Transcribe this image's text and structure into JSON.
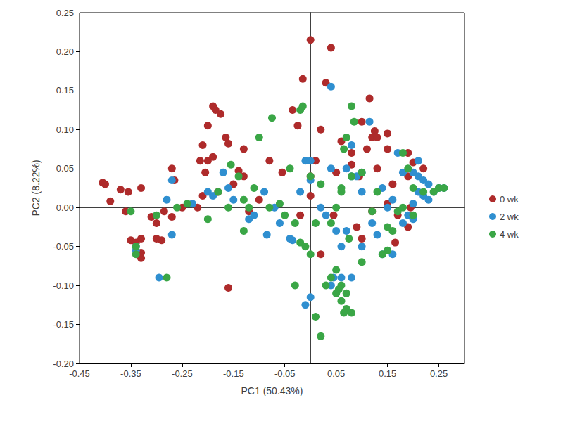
{
  "chart_data": {
    "type": "scatter",
    "x_label": "PC1 (50.43%)",
    "y_label": "PC2 (8.22%)",
    "xlim": [
      -0.45,
      0.3
    ],
    "xticks": [
      -0.45,
      -0.35,
      -0.25,
      -0.15,
      -0.05,
      0.05,
      0.15,
      0.25
    ],
    "ylim": [
      -0.2,
      0.25
    ],
    "yticks": [
      {
        "value": -0.2,
        "label": "-0.20"
      },
      -0.15,
      {
        "value": -0.1,
        "label": "-0.10"
      },
      -0.05,
      {
        "value": 0,
        "label": "0.00"
      },
      0.05,
      {
        "value": 0.1,
        "label": "0.10"
      },
      0.15,
      {
        "value": 0.2,
        "label": "0.20"
      },
      0.25
    ],
    "grid": false,
    "legend": "right",
    "marker": "circle",
    "series": [
      {
        "name": "0 wk",
        "color": "#ae2b2b",
        "values": [
          [
            -0.405,
            0.032
          ],
          [
            -0.4,
            0.03
          ],
          [
            -0.37,
            0.023
          ],
          [
            -0.355,
            0.02
          ],
          [
            -0.33,
            0.025
          ],
          [
            -0.39,
            0.008
          ],
          [
            -0.36,
            -0.005
          ],
          [
            -0.35,
            -0.042
          ],
          [
            -0.34,
            -0.045
          ],
          [
            -0.33,
            -0.04
          ],
          [
            -0.33,
            -0.065
          ],
          [
            -0.33,
            -0.058
          ],
          [
            -0.3,
            -0.04
          ],
          [
            -0.29,
            -0.042
          ],
          [
            -0.31,
            -0.012
          ],
          [
            -0.3,
            -0.02
          ],
          [
            -0.285,
            -0.005
          ],
          [
            -0.27,
            -0.012
          ],
          [
            -0.265,
            0.035
          ],
          [
            -0.27,
            0.05
          ],
          [
            -0.25,
            0.0
          ],
          [
            -0.22,
            0.0
          ],
          [
            -0.21,
            0.015
          ],
          [
            -0.205,
            0.045
          ],
          [
            -0.2,
            0.06
          ],
          [
            -0.21,
            0.08
          ],
          [
            -0.2,
            0.105
          ],
          [
            -0.19,
            0.13
          ],
          [
            -0.185,
            0.125
          ],
          [
            -0.175,
            0.12
          ],
          [
            -0.215,
            0.06
          ],
          [
            -0.19,
            0.065
          ],
          [
            -0.165,
            0.09
          ],
          [
            -0.16,
            0.082
          ],
          [
            -0.13,
            0.075
          ],
          [
            -0.14,
            0.047
          ],
          [
            -0.13,
            0.04
          ],
          [
            -0.15,
            0.03
          ],
          [
            -0.18,
            0.02
          ],
          [
            -0.16,
            -0.103
          ],
          [
            -0.1,
            0.01
          ],
          [
            -0.08,
            0.06
          ],
          [
            -0.055,
            0.045
          ],
          [
            -0.025,
            0.105
          ],
          [
            -0.015,
            0.165
          ],
          [
            -0.035,
            0.125
          ],
          [
            0.0,
            0.215
          ],
          [
            0.04,
            0.205
          ],
          [
            0.03,
            0.16
          ],
          [
            0.02,
            0.1
          ],
          [
            0.01,
            0.06
          ],
          [
            0.0,
            0.04
          ],
          [
            0.05,
            0.045
          ],
          [
            0.06,
            0.085
          ],
          [
            0.08,
            0.07
          ],
          [
            0.1,
            0.11
          ],
          [
            0.115,
            0.14
          ],
          [
            0.12,
            0.09
          ],
          [
            0.125,
            0.098
          ],
          [
            0.13,
            0.09
          ],
          [
            0.15,
            0.095
          ],
          [
            0.15,
            0.075
          ],
          [
            0.11,
            0.075
          ],
          [
            0.13,
            0.05
          ],
          [
            0.095,
            0.04
          ],
          [
            0.08,
            0.055
          ],
          [
            0.19,
            0.07
          ],
          [
            0.2,
            0.058
          ],
          [
            0.22,
            0.05
          ],
          [
            0.19,
            0.04
          ],
          [
            0.16,
            0.03
          ],
          [
            0.15,
            0.005
          ],
          [
            0.17,
            -0.01
          ],
          [
            0.19,
            -0.025
          ],
          [
            0.12,
            -0.005
          ],
          [
            0.09,
            -0.025
          ],
          [
            0.02,
            -0.06
          ],
          [
            0.045,
            -0.01
          ],
          [
            0.1,
            -0.04
          ],
          [
            0.165,
            -0.045
          ],
          [
            0.195,
            0.0
          ],
          [
            -0.02,
            -0.01
          ],
          [
            0.0,
            0.015
          ],
          [
            -0.12,
            -0.005
          ]
        ]
      },
      {
        "name": "2 wk",
        "color": "#2f8fd0",
        "values": [
          [
            -0.34,
            -0.05
          ],
          [
            -0.34,
            -0.055
          ],
          [
            -0.295,
            -0.09
          ],
          [
            -0.27,
            -0.035
          ],
          [
            -0.28,
            0.01
          ],
          [
            -0.27,
            0.035
          ],
          [
            -0.23,
            0.005
          ],
          [
            -0.2,
            0.02
          ],
          [
            -0.19,
            0.015
          ],
          [
            -0.17,
            0.045
          ],
          [
            -0.16,
            0.025
          ],
          [
            -0.15,
            0.01
          ],
          [
            -0.12,
            -0.015
          ],
          [
            -0.11,
            -0.01
          ],
          [
            -0.09,
            0.02
          ],
          [
            -0.07,
            0.0
          ],
          [
            -0.085,
            -0.035
          ],
          [
            -0.06,
            -0.02
          ],
          [
            -0.04,
            -0.04
          ],
          [
            -0.035,
            -0.042
          ],
          [
            -0.02,
            0.02
          ],
          [
            -0.01,
            0.06
          ],
          [
            0.0,
            0.035
          ],
          [
            -0.01,
            -0.125
          ],
          [
            0.0,
            -0.115
          ],
          [
            0.04,
            0.155
          ],
          [
            0.02,
            0.0
          ],
          [
            0.03,
            -0.01
          ],
          [
            0.05,
            -0.03
          ],
          [
            0.06,
            -0.05
          ],
          [
            0.07,
            -0.03
          ],
          [
            0.08,
            0.04
          ],
          [
            0.09,
            0.04
          ],
          [
            0.1,
            0.045
          ],
          [
            0.08,
            0.08
          ],
          [
            0.1,
            0.02
          ],
          [
            0.12,
            -0.02
          ],
          [
            0.13,
            -0.035
          ],
          [
            0.14,
            -0.06
          ],
          [
            0.1,
            -0.05
          ],
          [
            0.08,
            -0.09
          ],
          [
            0.045,
            -0.09
          ],
          [
            0.04,
            -0.1
          ],
          [
            0.06,
            -0.09
          ],
          [
            0.14,
            0.025
          ],
          [
            0.16,
            0.01
          ],
          [
            0.17,
            0.07
          ],
          [
            0.18,
            0.045
          ],
          [
            0.2,
            0.045
          ],
          [
            0.21,
            0.04
          ],
          [
            0.22,
            0.035
          ],
          [
            0.23,
            0.03
          ],
          [
            0.21,
            0.02
          ],
          [
            0.22,
            0.015
          ],
          [
            0.24,
            0.02
          ],
          [
            0.25,
            0.025
          ],
          [
            0.26,
            0.025
          ],
          [
            0.2,
            0.005
          ],
          [
            0.19,
            -0.01
          ],
          [
            0.2,
            -0.015
          ],
          [
            0.18,
            -0.02
          ],
          [
            0.23,
            0.01
          ],
          [
            0.15,
            0.0
          ],
          [
            0.16,
            -0.06
          ],
          [
            0.115,
            0.11
          ],
          [
            0.07,
            0.05
          ],
          [
            0.04,
            0.05
          ],
          [
            0.0,
            0.06
          ],
          [
            0.21,
            0.06
          ]
        ]
      },
      {
        "name": "4 wk",
        "color": "#3aa646",
        "values": [
          [
            -0.35,
            -0.005
          ],
          [
            -0.34,
            -0.05
          ],
          [
            -0.34,
            -0.06
          ],
          [
            -0.3,
            -0.01
          ],
          [
            -0.28,
            -0.09
          ],
          [
            -0.26,
            0.0
          ],
          [
            -0.24,
            0.005
          ],
          [
            -0.2,
            -0.015
          ],
          [
            -0.18,
            0.02
          ],
          [
            -0.16,
            0.0
          ],
          [
            -0.155,
            0.055
          ],
          [
            -0.14,
            0.04
          ],
          [
            -0.13,
            -0.03
          ],
          [
            -0.12,
            0.0
          ],
          [
            -0.11,
            0.025
          ],
          [
            -0.1,
            0.09
          ],
          [
            -0.08,
            0.0
          ],
          [
            -0.075,
            0.115
          ],
          [
            -0.06,
            0.005
          ],
          [
            -0.05,
            -0.01
          ],
          [
            -0.03,
            -0.02
          ],
          [
            -0.02,
            0.125
          ],
          [
            -0.015,
            0.13
          ],
          [
            -0.03,
            -0.1
          ],
          [
            -0.02,
            -0.045
          ],
          [
            -0.01,
            -0.05
          ],
          [
            0.0,
            -0.06
          ],
          [
            0.01,
            -0.02
          ],
          [
            0.0,
            0.04
          ],
          [
            0.01,
            -0.14
          ],
          [
            0.02,
            -0.165
          ],
          [
            0.03,
            -0.1
          ],
          [
            0.04,
            -0.09
          ],
          [
            0.05,
            -0.08
          ],
          [
            0.06,
            -0.1
          ],
          [
            0.05,
            -0.11
          ],
          [
            0.06,
            -0.12
          ],
          [
            0.07,
            -0.11
          ],
          [
            0.07,
            -0.13
          ],
          [
            0.08,
            -0.135
          ],
          [
            0.065,
            -0.135
          ],
          [
            0.055,
            -0.105
          ],
          [
            0.04,
            -0.02
          ],
          [
            0.05,
            0.0
          ],
          [
            0.06,
            0.02
          ],
          [
            0.065,
            0.075
          ],
          [
            0.07,
            0.09
          ],
          [
            0.08,
            0.13
          ],
          [
            0.085,
            0.11
          ],
          [
            0.06,
            0.025
          ],
          [
            0.08,
            0.04
          ],
          [
            0.1,
            0.045
          ],
          [
            0.12,
            -0.005
          ],
          [
            0.13,
            0.02
          ],
          [
            0.15,
            -0.025
          ],
          [
            0.15,
            -0.055
          ],
          [
            0.16,
            -0.03
          ],
          [
            0.18,
            0.0
          ],
          [
            0.18,
            0.07
          ],
          [
            0.19,
            0.05
          ],
          [
            0.2,
            0.025
          ],
          [
            0.22,
            0.02
          ],
          [
            0.24,
            0.02
          ],
          [
            0.25,
            0.025
          ],
          [
            0.26,
            0.025
          ],
          [
            0.2,
            -0.01
          ],
          [
            0.17,
            -0.005
          ],
          [
            0.14,
            -0.06
          ],
          [
            0.075,
            -0.04
          ],
          [
            0.1,
            -0.07
          ],
          [
            0.02,
            0.03
          ],
          [
            -0.04,
            0.05
          ],
          [
            -0.13,
            0.01
          ]
        ]
      }
    ]
  }
}
